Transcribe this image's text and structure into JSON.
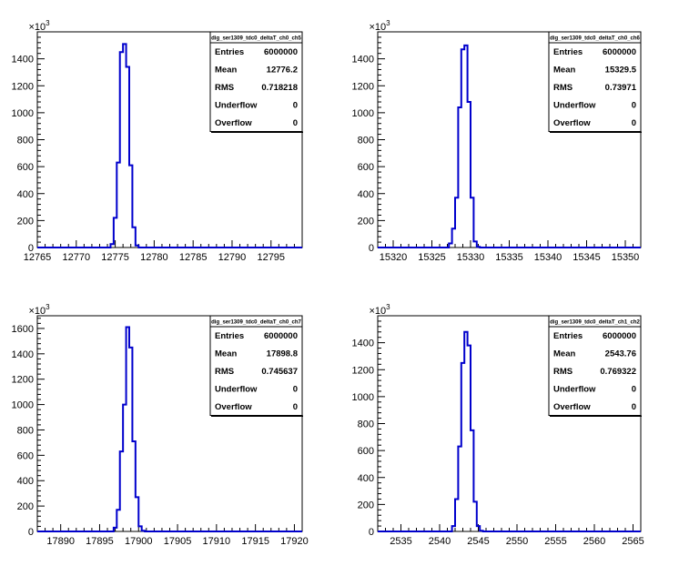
{
  "chart_data": [
    {
      "type": "bar",
      "title": "",
      "stats_title": "dig_ser1309_tdc0_deltaT_ch0_ch5",
      "y_multiplier_label": "×10",
      "y_multiplier_exp": "3",
      "xlim": [
        12765,
        12799
      ],
      "ylim": [
        0,
        1600
      ],
      "xticks": [
        12765,
        12770,
        12775,
        12780,
        12785,
        12790,
        12795
      ],
      "yticks": [
        0,
        200,
        400,
        600,
        800,
        1000,
        1200,
        1400
      ],
      "yticklabels": [
        "0",
        "200",
        "400",
        "600",
        "800",
        "1000",
        "1200",
        "1400"
      ],
      "bin_width": 0.4,
      "bins": [
        {
          "x": 12774.4,
          "y": 25
        },
        {
          "x": 12774.8,
          "y": 220
        },
        {
          "x": 12775.2,
          "y": 630
        },
        {
          "x": 12775.6,
          "y": 1450
        },
        {
          "x": 12776.0,
          "y": 1510
        },
        {
          "x": 12776.4,
          "y": 1340
        },
        {
          "x": 12776.8,
          "y": 610
        },
        {
          "x": 12777.2,
          "y": 150
        },
        {
          "x": 12777.6,
          "y": 15
        }
      ],
      "stats": [
        {
          "label": "Entries",
          "value": "6000000"
        },
        {
          "label": "Mean",
          "value": "12776.2"
        },
        {
          "label": "RMS",
          "value": "0.718218"
        },
        {
          "label": "Underflow",
          "value": "0"
        },
        {
          "label": "Overflow",
          "value": "0"
        }
      ],
      "line_color": "#0000cc"
    },
    {
      "type": "bar",
      "title": "",
      "stats_title": "dig_ser1309_tdc0_deltaT_ch0_ch6",
      "y_multiplier_label": "×10",
      "y_multiplier_exp": "3",
      "xlim": [
        15318,
        15352
      ],
      "ylim": [
        0,
        1600
      ],
      "xticks": [
        15320,
        15325,
        15330,
        15335,
        15340,
        15345,
        15350
      ],
      "yticks": [
        0,
        200,
        400,
        600,
        800,
        1000,
        1200,
        1400
      ],
      "yticklabels": [
        "0",
        "200",
        "400",
        "600",
        "800",
        "1000",
        "1200",
        "1400"
      ],
      "bin_width": 0.4,
      "bins": [
        {
          "x": 15327.2,
          "y": 30
        },
        {
          "x": 15327.6,
          "y": 140
        },
        {
          "x": 15328.0,
          "y": 370
        },
        {
          "x": 15328.4,
          "y": 1040
        },
        {
          "x": 15328.8,
          "y": 1470
        },
        {
          "x": 15329.2,
          "y": 1500
        },
        {
          "x": 15329.6,
          "y": 1080
        },
        {
          "x": 15330.0,
          "y": 370
        },
        {
          "x": 15330.4,
          "y": 45
        },
        {
          "x": 15330.8,
          "y": 5
        }
      ],
      "stats": [
        {
          "label": "Entries",
          "value": "6000000"
        },
        {
          "label": "Mean",
          "value": "15329.5"
        },
        {
          "label": "RMS",
          "value": "0.73971"
        },
        {
          "label": "Underflow",
          "value": "0"
        },
        {
          "label": "Overflow",
          "value": "0"
        }
      ],
      "line_color": "#0000cc"
    },
    {
      "type": "bar",
      "title": "",
      "stats_title": "dig_ser1309_tdc0_deltaT_ch0_ch7",
      "y_multiplier_label": "×10",
      "y_multiplier_exp": "3",
      "xlim": [
        17887,
        17921
      ],
      "ylim": [
        0,
        1700
      ],
      "xticks": [
        17890,
        17895,
        17900,
        17905,
        17910,
        17915,
        17920
      ],
      "yticks": [
        0,
        200,
        400,
        600,
        800,
        1000,
        1200,
        1400,
        1600
      ],
      "yticklabels": [
        "0",
        "200",
        "400",
        "600",
        "800",
        "1000",
        "1200",
        "1400",
        "1600"
      ],
      "bin_width": 0.4,
      "bins": [
        {
          "x": 17896.8,
          "y": 30
        },
        {
          "x": 17897.2,
          "y": 170
        },
        {
          "x": 17897.6,
          "y": 630
        },
        {
          "x": 17898.0,
          "y": 1000
        },
        {
          "x": 17898.4,
          "y": 1610
        },
        {
          "x": 17898.8,
          "y": 1450
        },
        {
          "x": 17899.2,
          "y": 710
        },
        {
          "x": 17899.6,
          "y": 270
        },
        {
          "x": 17900.0,
          "y": 40
        },
        {
          "x": 17900.4,
          "y": 5
        }
      ],
      "stats": [
        {
          "label": "Entries",
          "value": "6000000"
        },
        {
          "label": "Mean",
          "value": "17898.8"
        },
        {
          "label": "RMS",
          "value": "0.745637"
        },
        {
          "label": "Underflow",
          "value": "0"
        },
        {
          "label": "Overflow",
          "value": "0"
        }
      ],
      "line_color": "#0000cc"
    },
    {
      "type": "bar",
      "title": "",
      "stats_title": "dig_ser1309_tdc0_deltaT_ch1_ch2",
      "y_multiplier_label": "×10",
      "y_multiplier_exp": "3",
      "xlim": [
        2532,
        2566
      ],
      "ylim": [
        0,
        1600
      ],
      "xticks": [
        2535,
        2540,
        2545,
        2550,
        2555,
        2560,
        2565
      ],
      "yticks": [
        0,
        200,
        400,
        600,
        800,
        1000,
        1200,
        1400
      ],
      "yticklabels": [
        "0",
        "200",
        "400",
        "600",
        "800",
        "1000",
        "1200",
        "1400"
      ],
      "bin_width": 0.4,
      "bins": [
        {
          "x": 2541.6,
          "y": 40
        },
        {
          "x": 2542.0,
          "y": 240
        },
        {
          "x": 2542.4,
          "y": 630
        },
        {
          "x": 2542.8,
          "y": 1250
        },
        {
          "x": 2543.2,
          "y": 1480
        },
        {
          "x": 2543.6,
          "y": 1380
        },
        {
          "x": 2544.0,
          "y": 750
        },
        {
          "x": 2544.4,
          "y": 220
        },
        {
          "x": 2544.8,
          "y": 40
        },
        {
          "x": 2545.2,
          "y": 5
        }
      ],
      "stats": [
        {
          "label": "Entries",
          "value": "6000000"
        },
        {
          "label": "Mean",
          "value": "2543.76"
        },
        {
          "label": "RMS",
          "value": "0.769322"
        },
        {
          "label": "Underflow",
          "value": "0"
        },
        {
          "label": "Overflow",
          "value": "0"
        }
      ],
      "line_color": "#0000cc"
    }
  ]
}
